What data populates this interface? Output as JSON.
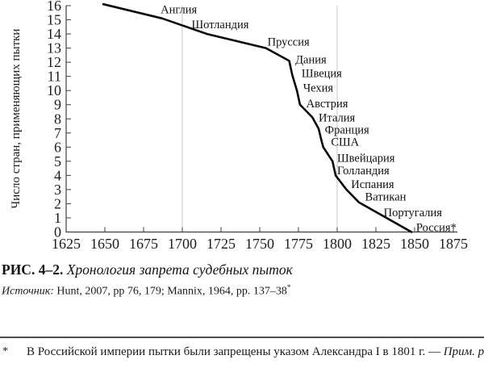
{
  "figure": {
    "caption_label": "РИС. 4–2.",
    "caption_title": "Хронология запрета судебных пыток",
    "source_label": "Источник:",
    "source_text": "Hunt, 2007, pp 76, 179; Mannix, 1964, pp. 137–38",
    "source_superscript": "*",
    "footnote_marker": "*",
    "footnote_text": "В Российской империи пытки были запрещены указом Александра I в 1801 г. — ",
    "footnote_italic": "Прим. ред."
  },
  "chart_data": {
    "type": "line",
    "title": "",
    "xlabel": "",
    "ylabel": "Число стран, применяющих пытки",
    "xlim": [
      1625,
      1875
    ],
    "ylim": [
      0,
      16
    ],
    "x_ticks": [
      1625,
      1650,
      1675,
      1700,
      1725,
      1750,
      1775,
      1800,
      1825,
      1850,
      1875
    ],
    "y_ticks": [
      0,
      1,
      2,
      3,
      4,
      5,
      6,
      7,
      8,
      9,
      10,
      11,
      12,
      13,
      14,
      15,
      16
    ],
    "x_gridlines": [
      1700,
      1800
    ],
    "colors": {
      "line": "#0a0a0a",
      "axis": "#3f3f3f",
      "grid": "#c6c6c6",
      "text": "#1a1a1a"
    },
    "series": [
      {
        "points": [
          [
            1649,
            16.1
          ],
          [
            1687,
            15.1
          ],
          [
            1716,
            14.0
          ],
          [
            1754,
            13.0
          ],
          [
            1769,
            12.1
          ],
          [
            1771,
            11.1
          ],
          [
            1774,
            10.0
          ],
          [
            1776,
            9.0
          ],
          [
            1784,
            8.1
          ],
          [
            1788,
            7.3
          ],
          [
            1790,
            6.4
          ],
          [
            1791,
            6.0
          ],
          [
            1797,
            5.0
          ],
          [
            1799,
            4.0
          ],
          [
            1806,
            3.0
          ],
          [
            1814,
            2.1
          ],
          [
            1827,
            1.3
          ],
          [
            1848,
            0.0
          ]
        ]
      }
    ],
    "country_labels": [
      {
        "text": "Англия",
        "x": 1686,
        "y": 15.75
      },
      {
        "text": "Шотландия",
        "x": 1706,
        "y": 14.7
      },
      {
        "text": "Пруссия",
        "x": 1755,
        "y": 13.45
      },
      {
        "text": "Дания",
        "x": 1773,
        "y": 12.2
      },
      {
        "text": "Швеция",
        "x": 1777,
        "y": 11.25
      },
      {
        "text": "Чехия",
        "x": 1778,
        "y": 10.2
      },
      {
        "text": "Австрия",
        "x": 1780,
        "y": 9.1
      },
      {
        "text": "Италия",
        "x": 1788,
        "y": 8.1
      },
      {
        "text": "Франция",
        "x": 1792,
        "y": 7.25
      },
      {
        "text": "США",
        "x": 1796,
        "y": 6.4
      },
      {
        "text": "Швейцария",
        "x": 1800,
        "y": 5.25
      },
      {
        "text": "Голландия",
        "x": 1800,
        "y": 4.35
      },
      {
        "text": "Испания",
        "x": 1809,
        "y": 3.4
      },
      {
        "text": "Ватикан",
        "x": 1818,
        "y": 2.5
      },
      {
        "text": "Португалия",
        "x": 1830,
        "y": 1.4
      },
      {
        "text": "Россия*",
        "x": 1851,
        "y": 0.33
      }
    ]
  }
}
